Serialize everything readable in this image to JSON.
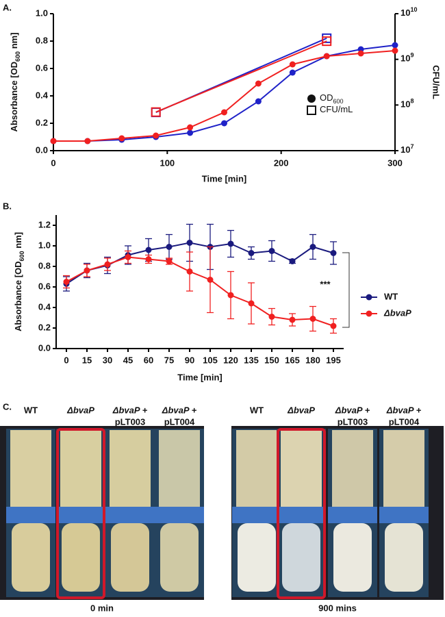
{
  "chart_data": [
    {
      "type": "line",
      "panel_label": "A.",
      "xlabel": "Time [min]",
      "ylabel": [
        "Absorbance [OD",
        "600",
        " nm]"
      ],
      "y2label": "CFU/mL",
      "xlim": [
        0,
        300
      ],
      "xticks": [
        0,
        100,
        200,
        300
      ],
      "ylim": [
        0,
        1
      ],
      "yticks": [
        {
          "value": 0,
          "label": "0.0"
        },
        {
          "value": 0.2,
          "label": "0.2"
        },
        {
          "value": 0.4,
          "label": "0.4"
        },
        {
          "value": 0.6,
          "label": "0.6"
        },
        {
          "value": 0.8,
          "label": "0.8"
        },
        {
          "value": 1,
          "label": "1.0"
        }
      ],
      "y2lim": [
        10000000,
        10000000000
      ],
      "y2log": true,
      "y2ticks": [
        {
          "value": 10000000,
          "label": "10",
          "exp": "7"
        },
        {
          "value": 100000000,
          "label": "10",
          "exp": "8"
        },
        {
          "value": 1000000000,
          "label": "10",
          "exp": "9"
        },
        {
          "value": 10000000000,
          "label": "10",
          "exp": "10"
        }
      ],
      "series": [
        {
          "color": "#1f22c8",
          "marker": "circle",
          "x": [
            0,
            30,
            60,
            90,
            120,
            150,
            180,
            210,
            240,
            270,
            300
          ],
          "values": [
            0.07,
            0.07,
            0.08,
            0.1,
            0.13,
            0.2,
            0.36,
            0.57,
            0.69,
            0.74,
            0.77
          ]
        },
        {
          "color": "#f02020",
          "marker": "circle",
          "x": [
            0,
            30,
            60,
            90,
            120,
            150,
            180,
            210,
            240,
            270,
            300
          ],
          "values": [
            0.07,
            0.07,
            0.09,
            0.11,
            0.17,
            0.28,
            0.49,
            0.63,
            0.69,
            0.71,
            0.73
          ]
        },
        {
          "color": "#1f22c8",
          "marker": "square",
          "axis": "y2",
          "x": [
            90,
            240
          ],
          "values": [
            69000000,
            2900000000
          ]
        },
        {
          "color": "#f02020",
          "marker": "square",
          "axis": "y2",
          "x": [
            90,
            240
          ],
          "values": [
            70000000,
            2500000000
          ]
        }
      ],
      "legend": [
        {
          "marker": "circle",
          "text": [
            "OD",
            "600"
          ]
        },
        {
          "marker": "square",
          "text": [
            "CFU/mL"
          ]
        }
      ]
    },
    {
      "type": "line",
      "panel_label": "B.",
      "xlabel": "Time [min]",
      "ylabel": [
        "Absorbance [OD",
        "600",
        " nm]"
      ],
      "categories": [
        0,
        15,
        30,
        45,
        60,
        75,
        90,
        105,
        120,
        135,
        150,
        165,
        180,
        195
      ],
      "ylim": [
        0,
        1.3
      ],
      "yticks": [
        {
          "value": 0,
          "label": "0.0"
        },
        {
          "value": 0.2,
          "label": "0.2"
        },
        {
          "value": 0.4,
          "label": "0.4"
        },
        {
          "value": 0.6,
          "label": "0.6"
        },
        {
          "value": 0.8,
          "label": "0.8"
        },
        {
          "value": 1,
          "label": "1.0"
        },
        {
          "value": 1.2,
          "label": "1.2"
        }
      ],
      "annotation": "***",
      "series": [
        {
          "name": "WT",
          "color": "#1a1a7e",
          "values": [
            0.63,
            0.76,
            0.81,
            0.91,
            0.96,
            0.99,
            1.03,
            0.99,
            1.02,
            0.93,
            0.95,
            0.85,
            0.99,
            0.93
          ],
          "errors": [
            0.07,
            0.07,
            0.08,
            0.09,
            0.11,
            0.12,
            0.18,
            0.22,
            0.13,
            0.06,
            0.1,
            0.02,
            0.12,
            0.11
          ]
        },
        {
          "name": "ΔbvaP",
          "color": "#f02020",
          "values": [
            0.65,
            0.76,
            0.82,
            0.89,
            0.87,
            0.85,
            0.75,
            0.67,
            0.52,
            0.44,
            0.31,
            0.28,
            0.29,
            0.22
          ],
          "errors": [
            0.06,
            0.06,
            0.06,
            0.06,
            0.04,
            0.03,
            0.19,
            0.32,
            0.23,
            0.2,
            0.08,
            0.06,
            0.12,
            0.07
          ]
        }
      ]
    }
  ],
  "panel_c": {
    "label": "C.",
    "groups": [
      {
        "caption": "0 min",
        "tubes": [
          {
            "lines": [
              "WT"
            ],
            "color": "#2020e0",
            "italic": false
          },
          {
            "lines": [
              "ΔbvaP"
            ],
            "color": "#e82020",
            "italic": true
          },
          {
            "lines": [
              "ΔbvaP +",
              "pLT003"
            ],
            "color": "#a81414",
            "italic": true
          },
          {
            "lines": [
              "ΔbvaP +",
              "pLT004"
            ],
            "color": "#8a50c8",
            "italic": true
          }
        ]
      },
      {
        "caption": "900  mins",
        "tubes": [
          {
            "lines": [
              "WT"
            ],
            "color": "#2020e0",
            "italic": false
          },
          {
            "lines": [
              "ΔbvaP"
            ],
            "color": "#e82020",
            "italic": true
          },
          {
            "lines": [
              "ΔbvaP +",
              "pLT003"
            ],
            "color": "#a81414",
            "italic": true
          },
          {
            "lines": [
              "ΔbvaP +",
              "pLT004"
            ],
            "color": "#8a50c8",
            "italic": true
          }
        ]
      }
    ]
  }
}
